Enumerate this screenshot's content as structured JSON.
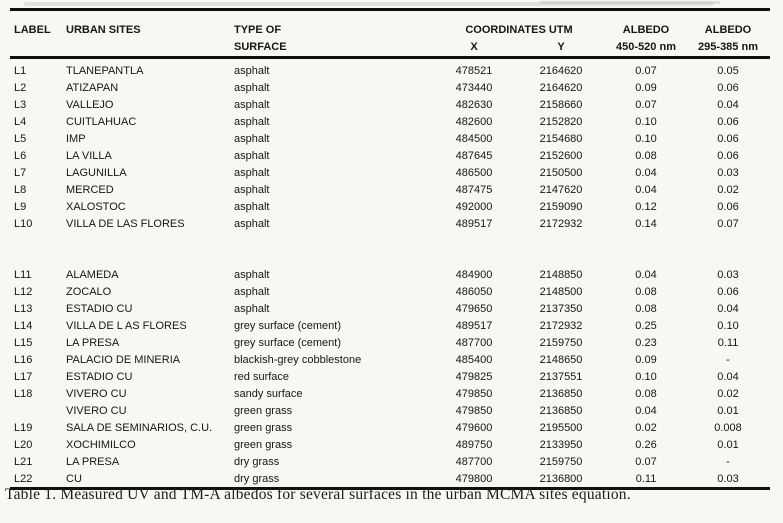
{
  "page": {
    "paper_color": "#f8f7f4",
    "ink_color": "#161616",
    "rule_color": "#101010"
  },
  "table": {
    "caption": "Table 1. Measured UV and TM-A albedos for several surfaces in the urban MCMA sites equation.",
    "columns": {
      "label": "LABEL",
      "urban_sites": "URBAN SITES",
      "type_of": "TYPE OF",
      "surface": "SURFACE",
      "coordinates_utm": "COORDINATES UTM",
      "x": "X",
      "y": "Y",
      "albedo": "ALBEDO",
      "albedo_range_1": "450-520 nm",
      "albedo_range_2": "295-385 nm"
    },
    "rows": [
      {
        "label": "L1",
        "site": "TLANEPANTLA",
        "surface": "asphalt",
        "x": "478521",
        "y": "2164620",
        "albedo_450_520": "0.07",
        "albedo_295_385": "0.05"
      },
      {
        "label": "L2",
        "site": "ATIZAPAN",
        "surface": "asphalt",
        "x": "473440",
        "y": "2164620",
        "albedo_450_520": "0.09",
        "albedo_295_385": "0.06"
      },
      {
        "label": "L3",
        "site": "VALLEJO",
        "surface": "asphalt",
        "x": "482630",
        "y": "2158660",
        "albedo_450_520": "0.07",
        "albedo_295_385": "0.04"
      },
      {
        "label": "L4",
        "site": "CUITLAHUAC",
        "surface": "asphalt",
        "x": "482600",
        "y": "2152820",
        "albedo_450_520": "0.10",
        "albedo_295_385": "0.06"
      },
      {
        "label": "L5",
        "site": "IMP",
        "surface": "asphalt",
        "x": "484500",
        "y": "2154680",
        "albedo_450_520": "0.10",
        "albedo_295_385": "0.06"
      },
      {
        "label": "L6",
        "site": "LA VILLA",
        "surface": "asphalt",
        "x": "487645",
        "y": "2152600",
        "albedo_450_520": "0.08",
        "albedo_295_385": "0.06"
      },
      {
        "label": "L7",
        "site": "LAGUNILLA",
        "surface": "asphalt",
        "x": "486500",
        "y": "2150500",
        "albedo_450_520": "0.04",
        "albedo_295_385": "0.03"
      },
      {
        "label": "L8",
        "site": "MERCED",
        "surface": "asphalt",
        "x": "487475",
        "y": "2147620",
        "albedo_450_520": "0.04",
        "albedo_295_385": "0.02"
      },
      {
        "label": "L9",
        "site": "XALOSTOC",
        "surface": "asphalt",
        "x": "492000",
        "y": "2159090",
        "albedo_450_520": "0.12",
        "albedo_295_385": "0.06"
      },
      {
        "label": "L10",
        "site": "VILLA DE LAS FLORES",
        "surface": "asphalt",
        "x": "489517",
        "y": "2172932",
        "albedo_450_520": "0.14",
        "albedo_295_385": "0.07"
      },
      {
        "spacer": true
      },
      {
        "spacer": true
      },
      {
        "label": "L11",
        "site": "ALAMEDA",
        "surface": "asphalt",
        "x": "484900",
        "y": "2148850",
        "albedo_450_520": "0.04",
        "albedo_295_385": "0.03"
      },
      {
        "label": "L12",
        "site": "ZOCALO",
        "surface": "asphalt",
        "x": "486050",
        "y": "2148500",
        "albedo_450_520": "0.08",
        "albedo_295_385": "0.06"
      },
      {
        "label": "L13",
        "site": "ESTADIO CU",
        "surface": "asphalt",
        "x": "479650",
        "y": "2137350",
        "albedo_450_520": "0.08",
        "albedo_295_385": "0.04"
      },
      {
        "label": "L14",
        "site": "VILLA DE L AS FLORES",
        "surface": "grey surface (cement)",
        "x": "489517",
        "y": "2172932",
        "albedo_450_520": "0.25",
        "albedo_295_385": "0.10"
      },
      {
        "label": "L15",
        "site": "LA PRESA",
        "surface": "grey surface (cement)",
        "x": "487700",
        "y": "2159750",
        "albedo_450_520": "0.23",
        "albedo_295_385": "0.11"
      },
      {
        "label": "L16",
        "site": "PALACIO DE MINERIA",
        "surface": "blackish-grey cobblestone",
        "x": "485400",
        "y": "2148650",
        "albedo_450_520": "0.09",
        "albedo_295_385": "-"
      },
      {
        "label": "L17",
        "site": "ESTADIO CU",
        "surface": "red surface",
        "x": "479825",
        "y": "2137551",
        "albedo_450_520": "0.10",
        "albedo_295_385": "0.04"
      },
      {
        "label": "L18",
        "site": "VIVERO CU",
        "surface": "sandy surface",
        "x": "479850",
        "y": "2136850",
        "albedo_450_520": "0.08",
        "albedo_295_385": "0.02"
      },
      {
        "label": "",
        "site": "VIVERO CU",
        "surface": "green grass",
        "x": "479850",
        "y": "2136850",
        "albedo_450_520": "0.04",
        "albedo_295_385": "0.01"
      },
      {
        "label": "L19",
        "site": "SALA DE SEMINARIOS, C.U.",
        "surface": "green grass",
        "x": "479600",
        "y": "2195500",
        "albedo_450_520": "0.02",
        "albedo_295_385": "0.008"
      },
      {
        "label": "L20",
        "site": "XOCHIMILCO",
        "surface": "green grass",
        "x": "489750",
        "y": "2133950",
        "albedo_450_520": "0.26",
        "albedo_295_385": "0.01"
      },
      {
        "label": "L21",
        "site": "LA PRESA",
        "surface": "dry grass",
        "x": "487700",
        "y": "2159750",
        "albedo_450_520": "0.07",
        "albedo_295_385": "-"
      },
      {
        "label": "L22",
        "site": "CU",
        "surface": "dry grass",
        "x": "479800",
        "y": "2136800",
        "albedo_450_520": "0.11",
        "albedo_295_385": "0.03"
      }
    ]
  }
}
